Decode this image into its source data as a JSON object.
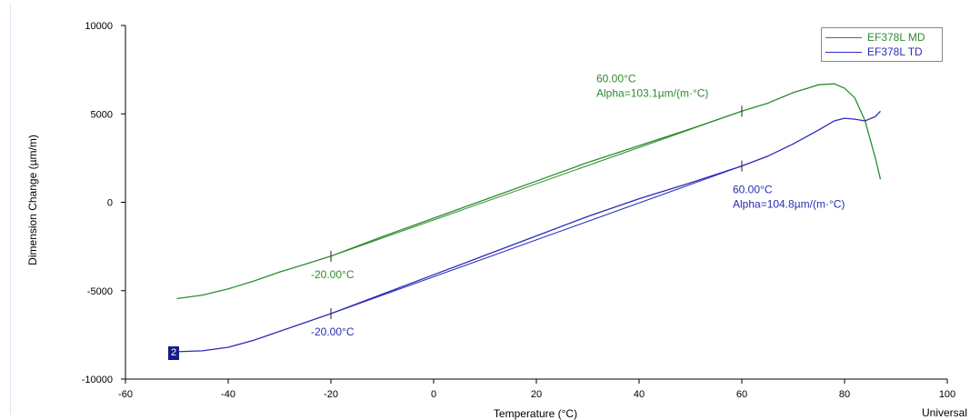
{
  "chart_data": {
    "type": "line",
    "xlabel": "Temperature (°C)",
    "ylabel": "Dimension Change (µm/m)",
    "xlim": [
      -60,
      100
    ],
    "ylim": [
      -10000,
      10000
    ],
    "x_ticks": [
      "-60",
      "-40",
      "-20",
      "0",
      "20",
      "40",
      "60",
      "80",
      "100"
    ],
    "y_ticks": [
      "10000",
      "5000",
      "0",
      "-5000",
      "-10000"
    ],
    "grid": false,
    "legend_position": "top-right",
    "series": [
      {
        "name": "EF378L MD",
        "color": "#2e8b2e",
        "points": [
          [
            -50,
            -5450
          ],
          [
            -45,
            -5250
          ],
          [
            -40,
            -4900
          ],
          [
            -35,
            -4450
          ],
          [
            -30,
            -3950
          ],
          [
            -25,
            -3500
          ],
          [
            -20,
            -3050
          ],
          [
            -10,
            -1950
          ],
          [
            0,
            -900
          ],
          [
            10,
            150
          ],
          [
            20,
            1200
          ],
          [
            30,
            2250
          ],
          [
            40,
            3200
          ],
          [
            50,
            4150
          ],
          [
            60,
            5150
          ],
          [
            65,
            5600
          ],
          [
            70,
            6200
          ],
          [
            75,
            6650
          ],
          [
            78,
            6700
          ],
          [
            80,
            6450
          ],
          [
            82,
            5900
          ],
          [
            84,
            4600
          ],
          [
            86,
            2500
          ],
          [
            87,
            1300
          ]
        ],
        "annotations": [
          {
            "x": 60,
            "y": 5150,
            "lines": [
              "60.00°C",
              "Alpha=103.1µm/(m·°C)"
            ]
          },
          {
            "x": -20,
            "y": -3050,
            "lines": [
              "-20.00°C"
            ]
          }
        ]
      },
      {
        "name": "EF378L TD",
        "color": "#2b2bb8",
        "points": [
          [
            -50,
            -8450
          ],
          [
            -45,
            -8400
          ],
          [
            -40,
            -8200
          ],
          [
            -35,
            -7800
          ],
          [
            -30,
            -7300
          ],
          [
            -25,
            -6800
          ],
          [
            -20,
            -6300
          ],
          [
            -10,
            -5200
          ],
          [
            0,
            -4100
          ],
          [
            10,
            -3000
          ],
          [
            20,
            -1900
          ],
          [
            30,
            -800
          ],
          [
            40,
            200
          ],
          [
            50,
            1100
          ],
          [
            60,
            2050
          ],
          [
            65,
            2600
          ],
          [
            70,
            3300
          ],
          [
            75,
            4100
          ],
          [
            78,
            4600
          ],
          [
            80,
            4750
          ],
          [
            82,
            4700
          ],
          [
            84,
            4600
          ],
          [
            86,
            4850
          ],
          [
            87,
            5150
          ]
        ],
        "annotations": [
          {
            "x": 60,
            "y": 2050,
            "lines": [
              "60.00°C",
              "Alpha=104.8µm/(m·°C)"
            ]
          },
          {
            "x": -20,
            "y": -6300,
            "lines": [
              "-20.00°C"
            ]
          }
        ]
      }
    ]
  },
  "footer": {
    "universal_label": "Universal"
  },
  "marker": {
    "label": "2"
  }
}
